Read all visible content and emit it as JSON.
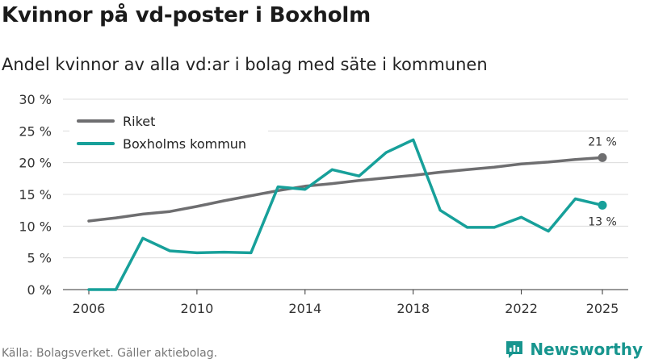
{
  "header": {
    "title": "Kvinnor på vd-poster i Boxholm",
    "subtitle": "Andel kvinnor av alla vd:ar i bolag med säte i kommunen"
  },
  "footer": {
    "source": "Källa: Bolagsverket. Gäller aktiebolag.",
    "brand": "Newsworthy"
  },
  "colors": {
    "riket": "#6e6e70",
    "kommun": "#17a09a",
    "grid": "#dcdcdc",
    "brand": "#17958e"
  },
  "chart_data": {
    "type": "line",
    "x": [
      2006,
      2007,
      2008,
      2009,
      2010,
      2011,
      2012,
      2013,
      2014,
      2015,
      2016,
      2017,
      2018,
      2019,
      2020,
      2021,
      2022,
      2023,
      2024,
      2025
    ],
    "series": [
      {
        "name": "Riket",
        "values": [
          10.8,
          11.3,
          11.9,
          12.3,
          13.1,
          14.0,
          14.8,
          15.6,
          16.3,
          16.7,
          17.2,
          17.6,
          18.0,
          18.5,
          18.9,
          19.3,
          19.8,
          20.1,
          20.5,
          20.8
        ],
        "end_label": "21 %"
      },
      {
        "name": "Boxholms kommun",
        "values": [
          0.0,
          0.0,
          8.1,
          6.1,
          5.8,
          5.9,
          5.8,
          16.2,
          15.8,
          18.9,
          17.9,
          21.6,
          23.6,
          12.5,
          9.8,
          9.8,
          11.4,
          9.2,
          14.3,
          13.3
        ],
        "end_label": "13 %"
      }
    ],
    "y_ticks": [
      "0 %",
      "5 %",
      "10 %",
      "15 %",
      "20 %",
      "25 %",
      "30 %"
    ],
    "y_tick_values": [
      0,
      5,
      10,
      15,
      20,
      25,
      30
    ],
    "x_ticks": [
      "2006",
      "2010",
      "2014",
      "2018",
      "2022",
      "2025"
    ],
    "x_tick_values": [
      2006,
      2010,
      2014,
      2018,
      2022,
      2025
    ],
    "ylim": [
      0,
      30
    ],
    "xlim": [
      2006,
      2025
    ],
    "legend": [
      "Riket",
      "Boxholms kommun"
    ],
    "legend_position": "top-left",
    "grid": true
  }
}
